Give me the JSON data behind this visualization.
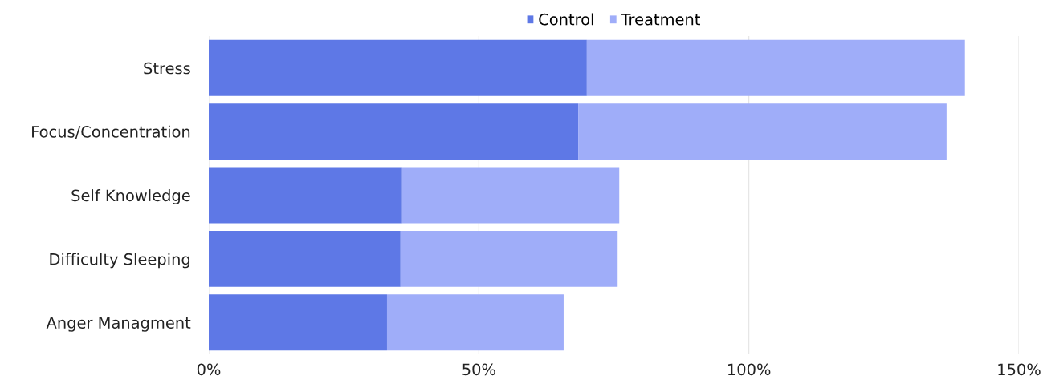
{
  "chart_data": {
    "type": "bar",
    "orientation": "horizontal",
    "stacked": true,
    "categories": [
      "Stress",
      "Focus/Concentration",
      "Self Knowledge",
      "Difficulty Sleeping",
      "Anger Managment"
    ],
    "series": [
      {
        "name": "Control",
        "color": "#5e78e6",
        "values": [
          70,
          68.4,
          35.8,
          35.5,
          33
        ]
      },
      {
        "name": "Treatment",
        "color": "#9fadf9",
        "values": [
          70,
          68.2,
          40.2,
          40.2,
          32.7
        ]
      }
    ],
    "xlim": [
      0,
      150
    ],
    "xticks": [
      {
        "value": 0,
        "label": "0%"
      },
      {
        "value": 50,
        "label": "50%"
      },
      {
        "value": 100,
        "label": "100%"
      },
      {
        "value": 150,
        "label": "150%"
      }
    ],
    "grid": "x",
    "legend": "top"
  }
}
